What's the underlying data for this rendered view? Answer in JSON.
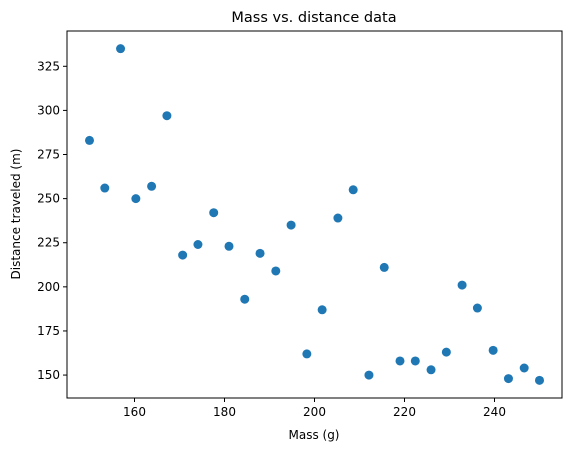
{
  "chart_data": {
    "type": "scatter",
    "title": "Mass vs. distance data",
    "xlabel": "Mass (g)",
    "ylabel": "Distance traveled (m)",
    "xlim": [
      145,
      255
    ],
    "ylim": [
      137,
      345
    ],
    "xticks": [
      160,
      180,
      200,
      220,
      240
    ],
    "yticks": [
      150,
      175,
      200,
      225,
      250,
      275,
      300,
      325
    ],
    "grid": false,
    "marker_color": "#1f77b4",
    "series": [
      {
        "x": [
          150,
          153.4,
          156.9,
          160.3,
          163.8,
          167.2,
          170.7,
          174.1,
          177.6,
          181,
          184.5,
          187.9,
          191.4,
          194.8,
          198.3,
          201.7,
          205.2,
          208.6,
          212.1,
          215.5,
          219,
          222.4,
          225.9,
          229.3,
          232.8,
          236.2,
          239.7,
          243.1,
          246.6,
          250
        ],
        "y": [
          283,
          256,
          335,
          250,
          257,
          297,
          218,
          224,
          242,
          223,
          193,
          219,
          209,
          235,
          162,
          187,
          239,
          255,
          150,
          211,
          158,
          158,
          153,
          163,
          201,
          188,
          164,
          148,
          154,
          147
        ]
      }
    ]
  }
}
